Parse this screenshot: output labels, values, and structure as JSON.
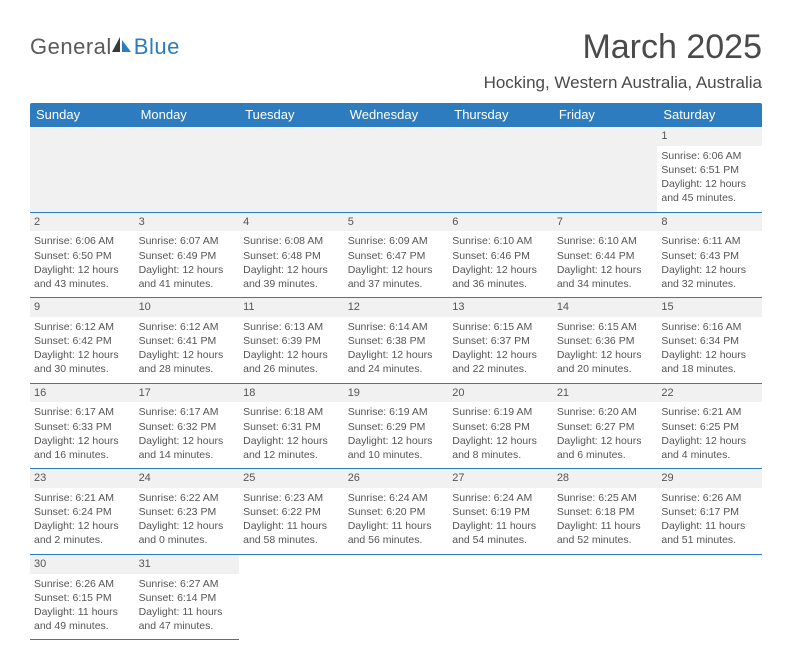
{
  "brand": {
    "part1": "General",
    "part2": "Blue"
  },
  "title": "March 2025",
  "location": "Hocking, Western Australia, Australia",
  "colors": {
    "header_bg": "#2d7cbf",
    "header_text": "#ffffff",
    "grid_line": "#2d7cbf",
    "daynum_bg": "#f1f1f1",
    "body_text": "#555555",
    "title_text": "#4a4a4a",
    "logo_gray": "#5a5a5a",
    "logo_blue": "#2d7cbf",
    "page_bg": "#ffffff"
  },
  "daysOfWeek": [
    "Sunday",
    "Monday",
    "Tuesday",
    "Wednesday",
    "Thursday",
    "Friday",
    "Saturday"
  ],
  "weeks": [
    [
      null,
      null,
      null,
      null,
      null,
      null,
      {
        "n": "1",
        "sunrise": "Sunrise: 6:06 AM",
        "sunset": "Sunset: 6:51 PM",
        "day1": "Daylight: 12 hours",
        "day2": "and 45 minutes."
      }
    ],
    [
      {
        "n": "2",
        "sunrise": "Sunrise: 6:06 AM",
        "sunset": "Sunset: 6:50 PM",
        "day1": "Daylight: 12 hours",
        "day2": "and 43 minutes."
      },
      {
        "n": "3",
        "sunrise": "Sunrise: 6:07 AM",
        "sunset": "Sunset: 6:49 PM",
        "day1": "Daylight: 12 hours",
        "day2": "and 41 minutes."
      },
      {
        "n": "4",
        "sunrise": "Sunrise: 6:08 AM",
        "sunset": "Sunset: 6:48 PM",
        "day1": "Daylight: 12 hours",
        "day2": "and 39 minutes."
      },
      {
        "n": "5",
        "sunrise": "Sunrise: 6:09 AM",
        "sunset": "Sunset: 6:47 PM",
        "day1": "Daylight: 12 hours",
        "day2": "and 37 minutes."
      },
      {
        "n": "6",
        "sunrise": "Sunrise: 6:10 AM",
        "sunset": "Sunset: 6:46 PM",
        "day1": "Daylight: 12 hours",
        "day2": "and 36 minutes."
      },
      {
        "n": "7",
        "sunrise": "Sunrise: 6:10 AM",
        "sunset": "Sunset: 6:44 PM",
        "day1": "Daylight: 12 hours",
        "day2": "and 34 minutes."
      },
      {
        "n": "8",
        "sunrise": "Sunrise: 6:11 AM",
        "sunset": "Sunset: 6:43 PM",
        "day1": "Daylight: 12 hours",
        "day2": "and 32 minutes."
      }
    ],
    [
      {
        "n": "9",
        "sunrise": "Sunrise: 6:12 AM",
        "sunset": "Sunset: 6:42 PM",
        "day1": "Daylight: 12 hours",
        "day2": "and 30 minutes."
      },
      {
        "n": "10",
        "sunrise": "Sunrise: 6:12 AM",
        "sunset": "Sunset: 6:41 PM",
        "day1": "Daylight: 12 hours",
        "day2": "and 28 minutes."
      },
      {
        "n": "11",
        "sunrise": "Sunrise: 6:13 AM",
        "sunset": "Sunset: 6:39 PM",
        "day1": "Daylight: 12 hours",
        "day2": "and 26 minutes."
      },
      {
        "n": "12",
        "sunrise": "Sunrise: 6:14 AM",
        "sunset": "Sunset: 6:38 PM",
        "day1": "Daylight: 12 hours",
        "day2": "and 24 minutes."
      },
      {
        "n": "13",
        "sunrise": "Sunrise: 6:15 AM",
        "sunset": "Sunset: 6:37 PM",
        "day1": "Daylight: 12 hours",
        "day2": "and 22 minutes."
      },
      {
        "n": "14",
        "sunrise": "Sunrise: 6:15 AM",
        "sunset": "Sunset: 6:36 PM",
        "day1": "Daylight: 12 hours",
        "day2": "and 20 minutes."
      },
      {
        "n": "15",
        "sunrise": "Sunrise: 6:16 AM",
        "sunset": "Sunset: 6:34 PM",
        "day1": "Daylight: 12 hours",
        "day2": "and 18 minutes."
      }
    ],
    [
      {
        "n": "16",
        "sunrise": "Sunrise: 6:17 AM",
        "sunset": "Sunset: 6:33 PM",
        "day1": "Daylight: 12 hours",
        "day2": "and 16 minutes."
      },
      {
        "n": "17",
        "sunrise": "Sunrise: 6:17 AM",
        "sunset": "Sunset: 6:32 PM",
        "day1": "Daylight: 12 hours",
        "day2": "and 14 minutes."
      },
      {
        "n": "18",
        "sunrise": "Sunrise: 6:18 AM",
        "sunset": "Sunset: 6:31 PM",
        "day1": "Daylight: 12 hours",
        "day2": "and 12 minutes."
      },
      {
        "n": "19",
        "sunrise": "Sunrise: 6:19 AM",
        "sunset": "Sunset: 6:29 PM",
        "day1": "Daylight: 12 hours",
        "day2": "and 10 minutes."
      },
      {
        "n": "20",
        "sunrise": "Sunrise: 6:19 AM",
        "sunset": "Sunset: 6:28 PM",
        "day1": "Daylight: 12 hours",
        "day2": "and 8 minutes."
      },
      {
        "n": "21",
        "sunrise": "Sunrise: 6:20 AM",
        "sunset": "Sunset: 6:27 PM",
        "day1": "Daylight: 12 hours",
        "day2": "and 6 minutes."
      },
      {
        "n": "22",
        "sunrise": "Sunrise: 6:21 AM",
        "sunset": "Sunset: 6:25 PM",
        "day1": "Daylight: 12 hours",
        "day2": "and 4 minutes."
      }
    ],
    [
      {
        "n": "23",
        "sunrise": "Sunrise: 6:21 AM",
        "sunset": "Sunset: 6:24 PM",
        "day1": "Daylight: 12 hours",
        "day2": "and 2 minutes."
      },
      {
        "n": "24",
        "sunrise": "Sunrise: 6:22 AM",
        "sunset": "Sunset: 6:23 PM",
        "day1": "Daylight: 12 hours",
        "day2": "and 0 minutes."
      },
      {
        "n": "25",
        "sunrise": "Sunrise: 6:23 AM",
        "sunset": "Sunset: 6:22 PM",
        "day1": "Daylight: 11 hours",
        "day2": "and 58 minutes."
      },
      {
        "n": "26",
        "sunrise": "Sunrise: 6:24 AM",
        "sunset": "Sunset: 6:20 PM",
        "day1": "Daylight: 11 hours",
        "day2": "and 56 minutes."
      },
      {
        "n": "27",
        "sunrise": "Sunrise: 6:24 AM",
        "sunset": "Sunset: 6:19 PM",
        "day1": "Daylight: 11 hours",
        "day2": "and 54 minutes."
      },
      {
        "n": "28",
        "sunrise": "Sunrise: 6:25 AM",
        "sunset": "Sunset: 6:18 PM",
        "day1": "Daylight: 11 hours",
        "day2": "and 52 minutes."
      },
      {
        "n": "29",
        "sunrise": "Sunrise: 6:26 AM",
        "sunset": "Sunset: 6:17 PM",
        "day1": "Daylight: 11 hours",
        "day2": "and 51 minutes."
      }
    ],
    [
      {
        "n": "30",
        "sunrise": "Sunrise: 6:26 AM",
        "sunset": "Sunset: 6:15 PM",
        "day1": "Daylight: 11 hours",
        "day2": "and 49 minutes."
      },
      {
        "n": "31",
        "sunrise": "Sunrise: 6:27 AM",
        "sunset": "Sunset: 6:14 PM",
        "day1": "Daylight: 11 hours",
        "day2": "and 47 minutes."
      },
      null,
      null,
      null,
      null,
      null
    ]
  ]
}
